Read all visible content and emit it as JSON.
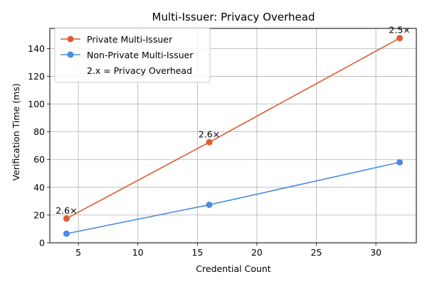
{
  "chart_data": {
    "type": "line",
    "title": "Multi-Issuer: Privacy Overhead",
    "xlabel": "Credential Count",
    "ylabel": "Verification Time (ms)",
    "xlim": [
      2.6,
      33.4
    ],
    "ylim": [
      0,
      154.5
    ],
    "xticks": [
      5,
      10,
      15,
      20,
      25,
      30
    ],
    "yticks": [
      0,
      20,
      40,
      60,
      80,
      100,
      120,
      140
    ],
    "grid": true,
    "legend_position": "top-left",
    "series": [
      {
        "name": "Private Multi-Issuer",
        "color": "#e05a2f",
        "x": [
          4,
          16,
          32
        ],
        "y": [
          17.5,
          72.5,
          147.5
        ]
      },
      {
        "name": "Non-Private Multi-Issuer",
        "color": "#4a8bde",
        "x": [
          4,
          16,
          32
        ],
        "y": [
          6.6,
          27.4,
          58
        ]
      }
    ],
    "legend_note": "2.x = Privacy Overhead",
    "annotations": [
      {
        "text": "2.6×",
        "x": 4,
        "y": 17.5
      },
      {
        "text": "2.6×",
        "x": 16,
        "y": 72.5
      },
      {
        "text": "2.5×",
        "x": 32,
        "y": 147.5
      }
    ]
  }
}
